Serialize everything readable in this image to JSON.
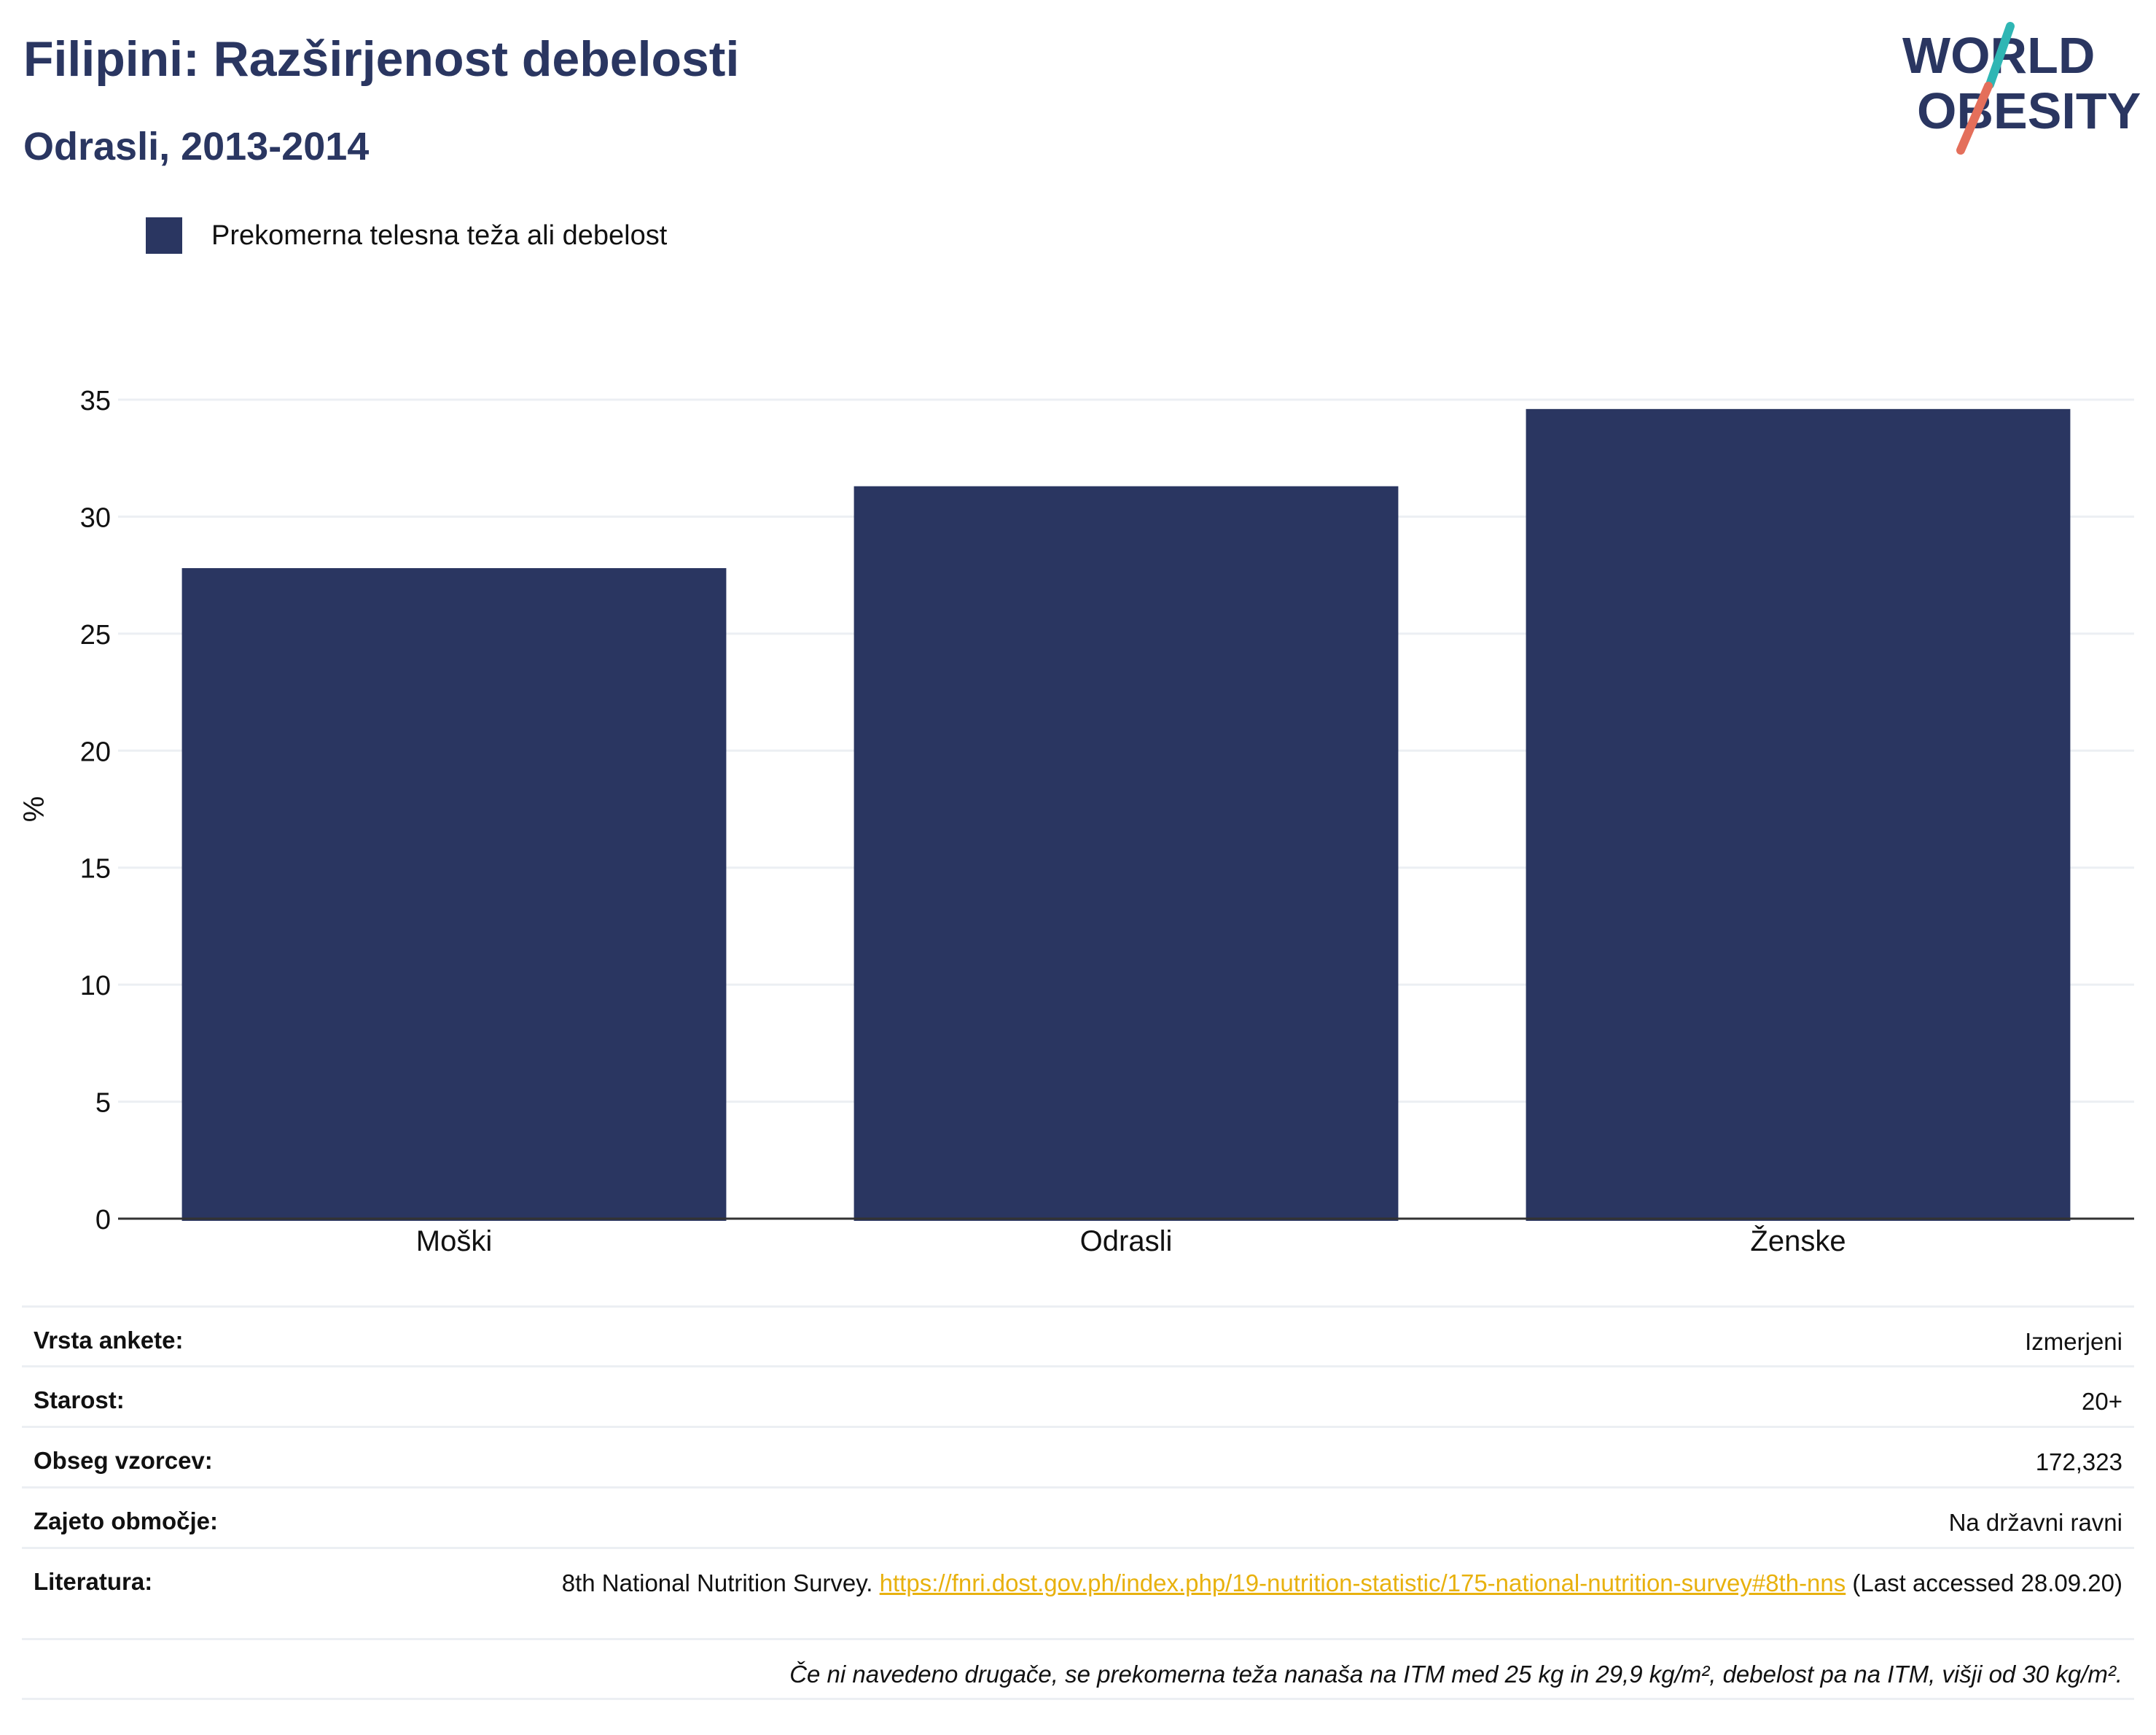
{
  "header": {
    "title": "Filipini: Razširjenost debelosti",
    "subtitle": "Odrasli, 2013-2014",
    "logo_line1": "WORLD",
    "logo_line2": "OBESITY"
  },
  "legend": {
    "label": "Prekomerna telesna teža ali debelost",
    "color": "#2a3661"
  },
  "chart_data": {
    "type": "bar",
    "categories": [
      "Moški",
      "Odrasli",
      "Ženske"
    ],
    "series": [
      {
        "name": "Prekomerna telesna teža ali debelost",
        "values": [
          27.8,
          31.3,
          34.6
        ],
        "color": "#2a3661"
      }
    ],
    "ylabel": "%",
    "ylim": [
      0,
      35
    ],
    "yticks": [
      0,
      5,
      10,
      15,
      20,
      25,
      30,
      35
    ],
    "grid": true,
    "legend_position": "top-left"
  },
  "meta": {
    "survey_type": {
      "label": "Vrsta ankete:",
      "value": "Izmerjeni"
    },
    "age": {
      "label": "Starost:",
      "value": "20+"
    },
    "sample_size": {
      "label": "Obseg vzorcev:",
      "value": "172,323"
    },
    "area": {
      "label": "Zajeto območje:",
      "value": "Na državni ravni"
    },
    "references": {
      "label": "Literatura:",
      "text_before": "8th National Nutrition Survey. ",
      "link": "https://fnri.dost.gov.ph/index.php/19-nutrition-statistic/175-national-nutrition-survey#8th-nns",
      "text_after": " (Last accessed 28.09.20)"
    },
    "footnote": "Če ni navedeno drugače, se prekomerna teža nanaša na ITM med 25 kg in 29,9 kg/m², debelost pa na ITM, višji od 30 kg/m²."
  },
  "colors": {
    "brand_navy": "#2a3661",
    "logo_teal": "#2fb6b4",
    "logo_coral": "#e46f5b",
    "link": "#e8b10e"
  }
}
